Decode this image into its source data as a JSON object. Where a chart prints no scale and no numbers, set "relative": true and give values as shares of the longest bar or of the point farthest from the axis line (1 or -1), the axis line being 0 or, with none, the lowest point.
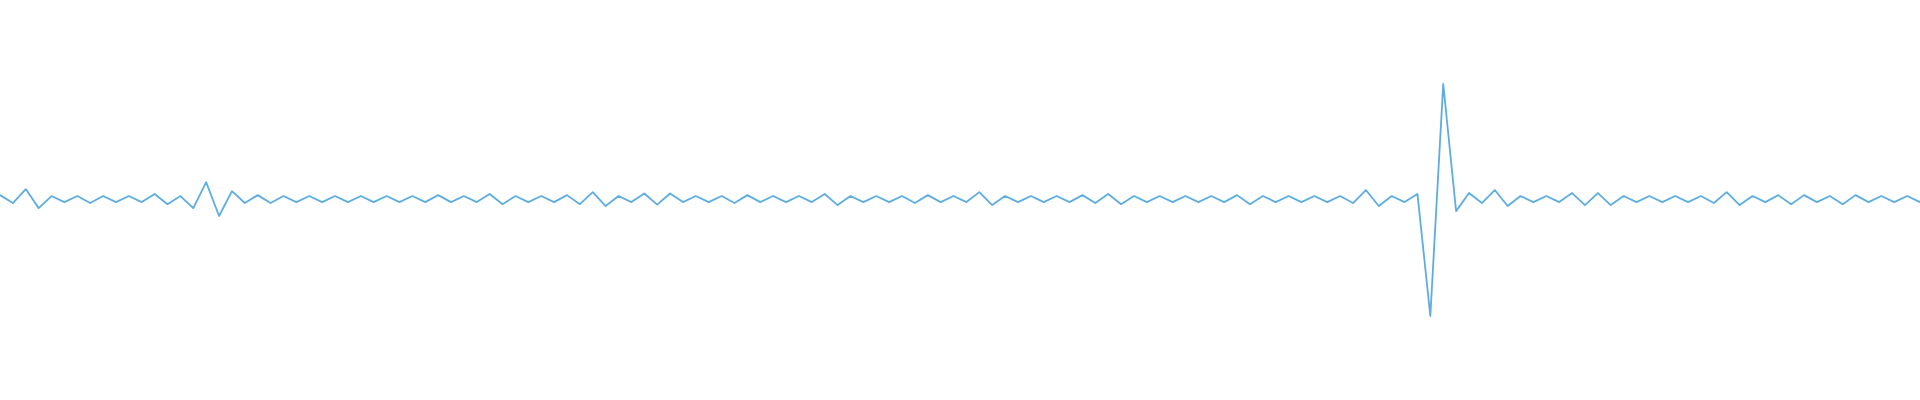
{
  "chart_data": {
    "type": "line",
    "relative": true,
    "color": "#5dade2",
    "categories": [
      null,
      null,
      null,
      null,
      null,
      null,
      null,
      null,
      null,
      null,
      null,
      null,
      null,
      null,
      null,
      null,
      null,
      null,
      null,
      null,
      null,
      null,
      null,
      null,
      null,
      null,
      null,
      null,
      null,
      null,
      null,
      null,
      null,
      null,
      null,
      null,
      null,
      null,
      null,
      null,
      null,
      null,
      null,
      null,
      null,
      null,
      null,
      null,
      null,
      null,
      null,
      null,
      null,
      null,
      null,
      null,
      null,
      null,
      null,
      null,
      null,
      null,
      null,
      null,
      null,
      null,
      null,
      null,
      null,
      null,
      null,
      null,
      null,
      null,
      null,
      null,
      null,
      null,
      null,
      null,
      null,
      null,
      null,
      null,
      null,
      null,
      null,
      null,
      null,
      null,
      null,
      null,
      null,
      null,
      null,
      null,
      null,
      null,
      null,
      null,
      null,
      null,
      null,
      null,
      null,
      null,
      null,
      null,
      null,
      null,
      null,
      null,
      null,
      null,
      null,
      null,
      null,
      null,
      null,
      null,
      null,
      null,
      null,
      null,
      null,
      null,
      null,
      null,
      null,
      null,
      null,
      null,
      null,
      null,
      null,
      null,
      null,
      null,
      null,
      null,
      null,
      null,
      null,
      null,
      null,
      null,
      null,
      null,
      null,
      null
    ],
    "values": [
      0.521,
      0.487,
      0.547,
      0.465,
      0.517,
      0.491,
      0.517,
      0.487,
      0.517,
      0.491,
      0.517,
      0.491,
      0.526,
      0.482,
      0.517,
      0.465,
      0.577,
      0.431,
      0.538,
      0.487,
      0.521,
      0.487,
      0.517,
      0.491,
      0.517,
      0.491,
      0.517,
      0.491,
      0.517,
      0.491,
      0.517,
      0.491,
      0.517,
      0.491,
      0.521,
      0.491,
      0.517,
      0.491,
      0.526,
      0.482,
      0.517,
      0.491,
      0.517,
      0.491,
      0.521,
      0.482,
      0.534,
      0.474,
      0.517,
      0.491,
      0.528,
      0.48,
      0.528,
      0.491,
      0.517,
      0.491,
      0.517,
      0.487,
      0.521,
      0.491,
      0.517,
      0.491,
      0.517,
      0.491,
      0.526,
      0.478,
      0.517,
      0.491,
      0.517,
      0.491,
      0.517,
      0.487,
      0.521,
      0.491,
      0.517,
      0.491,
      0.534,
      0.478,
      0.517,
      0.491,
      0.517,
      0.491,
      0.517,
      0.491,
      0.521,
      0.487,
      0.526,
      0.482,
      0.517,
      0.491,
      0.517,
      0.491,
      0.517,
      0.491,
      0.517,
      0.491,
      0.521,
      0.482,
      0.517,
      0.491,
      0.517,
      0.491,
      0.517,
      0.491,
      0.517,
      0.487,
      0.543,
      0.474,
      0.517,
      0.491,
      0.526,
      0,
      1,
      0.452,
      0.53,
      0.487,
      0.543,
      0.474,
      0.517,
      0.491,
      0.517,
      0.491,
      0.53,
      0.478,
      0.53,
      0.478,
      0.517,
      0.491,
      0.517,
      0.491,
      0.517,
      0.491,
      0.517,
      0.487,
      0.534,
      0.478,
      0.517,
      0.491,
      0.521,
      0.482,
      0.521,
      0.491,
      0.517,
      0.482,
      0.521,
      0.491,
      0.517,
      0.491,
      0.517,
      0.491
    ]
  }
}
